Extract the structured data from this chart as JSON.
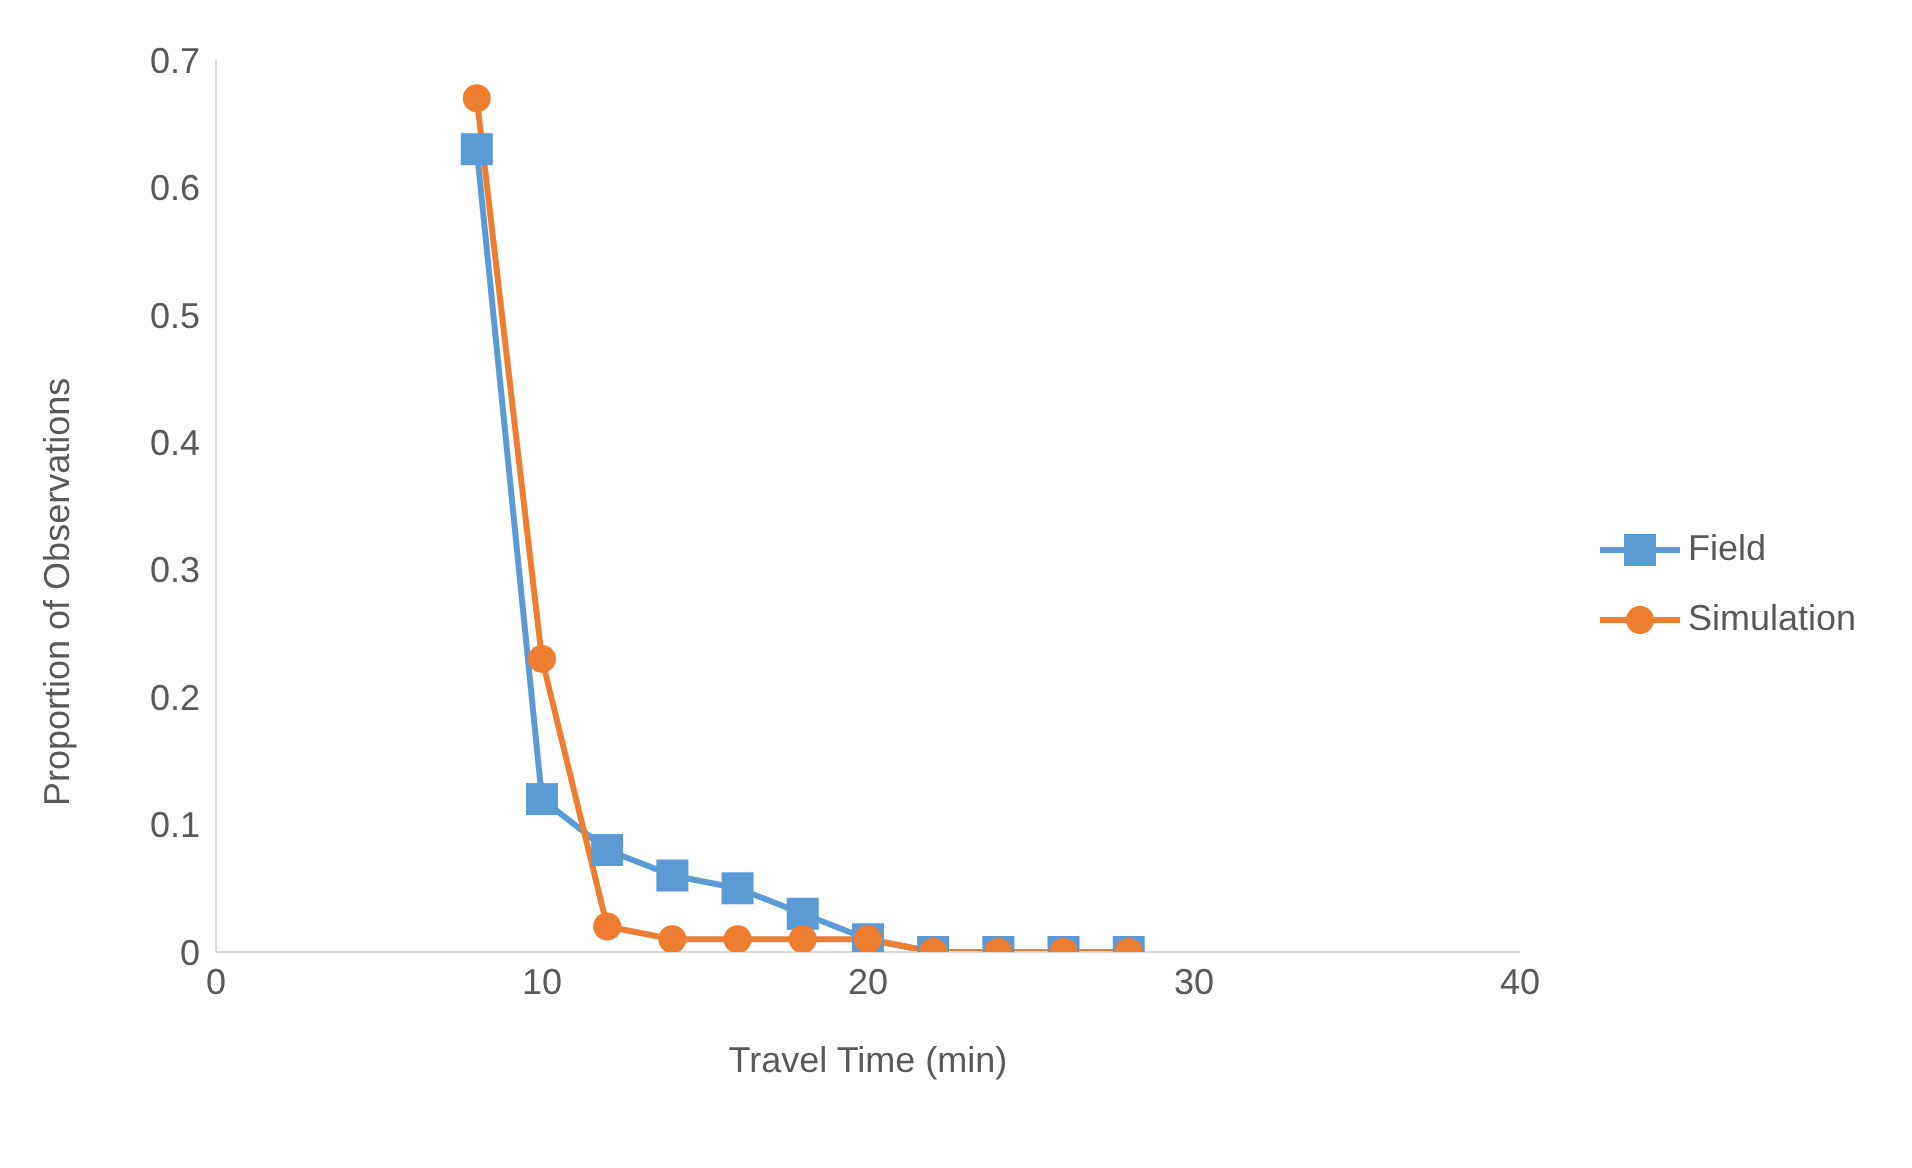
{
  "chart_data": {
    "type": "line",
    "xlabel": "Travel Time (min)",
    "ylabel": "Proportion of Observations",
    "x": [
      8,
      10,
      12,
      14,
      16,
      18,
      20,
      22,
      24,
      26,
      28
    ],
    "series": [
      {
        "name": "Field",
        "color": "#5b9bd5",
        "marker": "square",
        "values": [
          0.63,
          0.12,
          0.08,
          0.06,
          0.05,
          0.03,
          0.01,
          0,
          0,
          0,
          0
        ]
      },
      {
        "name": "Simulation",
        "color": "#ed7d31",
        "marker": "circle",
        "values": [
          0.67,
          0.23,
          0.02,
          0.01,
          0.01,
          0.01,
          0.01,
          0,
          0,
          0,
          0
        ]
      }
    ],
    "xlim": [
      0,
      40
    ],
    "xticks": [
      0,
      10,
      20,
      30,
      40
    ],
    "ylim": [
      0,
      0.7
    ],
    "yticks": [
      0,
      0.1,
      0.2,
      0.3,
      0.4,
      0.5,
      0.6,
      0.7
    ],
    "grid": false,
    "legend": "right",
    "line_style": "solid"
  }
}
